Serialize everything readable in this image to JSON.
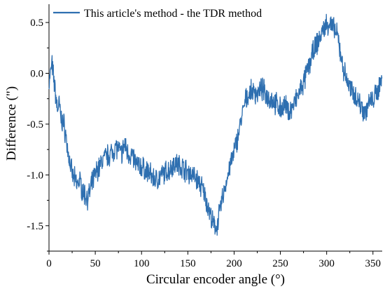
{
  "chart_data": {
    "type": "line",
    "xlabel": "Circular encoder angle (°)",
    "ylabel": "Difference (\")",
    "xlim": [
      0,
      360
    ],
    "ylim": [
      -1.75,
      0.68
    ],
    "xticks": [
      0,
      50,
      100,
      150,
      200,
      250,
      300,
      350
    ],
    "xtick_labels": [
      "0",
      "50",
      "100",
      "150",
      "200",
      "250",
      "300",
      "350"
    ],
    "yticks": [
      -1.5,
      -1.0,
      -0.5,
      0.0,
      0.5
    ],
    "ytick_labels": [
      "-1.5",
      "-1.0",
      "-0.5",
      "0.0",
      "0.5"
    ],
    "grid": false,
    "legend_position": "top-left",
    "series": [
      {
        "name": "This article's method - the TDR method",
        "color": "#2e6fb0",
        "x": [
          0,
          2,
          3,
          5,
          7,
          9,
          11,
          13,
          16,
          18,
          20,
          23,
          25,
          28,
          30,
          33,
          36,
          39,
          42,
          44,
          46,
          48,
          52,
          55,
          58,
          62,
          65,
          68,
          72,
          75,
          78,
          82,
          85,
          90,
          95,
          100,
          105,
          110,
          115,
          120,
          125,
          130,
          135,
          140,
          145,
          150,
          155,
          160,
          165,
          170,
          173,
          176,
          178,
          180,
          182,
          185,
          188,
          192,
          196,
          200,
          204,
          208,
          212,
          216,
          220,
          225,
          230,
          235,
          240,
          245,
          250,
          255,
          260,
          265,
          270,
          275,
          280,
          285,
          290,
          295,
          298,
          300,
          303,
          306,
          309,
          312,
          315,
          318,
          321,
          324,
          327,
          330,
          333,
          336,
          339,
          342,
          345,
          348,
          351,
          354,
          357,
          360
        ],
        "y": [
          -0.1,
          0.02,
          0.1,
          -0.05,
          -0.2,
          -0.35,
          -0.3,
          -0.45,
          -0.5,
          -0.6,
          -0.75,
          -0.9,
          -1.0,
          -1.05,
          -1.1,
          -1.05,
          -1.15,
          -1.2,
          -1.22,
          -1.18,
          -1.1,
          -1.05,
          -0.95,
          -0.92,
          -0.85,
          -0.82,
          -0.8,
          -0.78,
          -0.72,
          -0.75,
          -0.8,
          -0.7,
          -0.78,
          -0.82,
          -0.9,
          -0.92,
          -0.96,
          -1.0,
          -1.05,
          -1.02,
          -0.98,
          -0.95,
          -0.88,
          -0.9,
          -0.93,
          -0.97,
          -1.0,
          -1.05,
          -1.12,
          -1.25,
          -1.35,
          -1.45,
          -1.5,
          -1.52,
          -1.48,
          -1.35,
          -1.2,
          -1.05,
          -0.9,
          -0.78,
          -0.62,
          -0.45,
          -0.28,
          -0.2,
          -0.18,
          -0.2,
          -0.15,
          -0.22,
          -0.25,
          -0.3,
          -0.35,
          -0.32,
          -0.38,
          -0.3,
          -0.2,
          -0.1,
          0.05,
          0.2,
          0.3,
          0.4,
          0.46,
          0.48,
          0.5,
          0.45,
          0.42,
          0.35,
          0.2,
          0.05,
          -0.05,
          -0.12,
          -0.18,
          -0.2,
          -0.25,
          -0.3,
          -0.35,
          -0.38,
          -0.3,
          -0.28,
          -0.25,
          -0.2,
          -0.12,
          -0.05
        ]
      }
    ]
  }
}
